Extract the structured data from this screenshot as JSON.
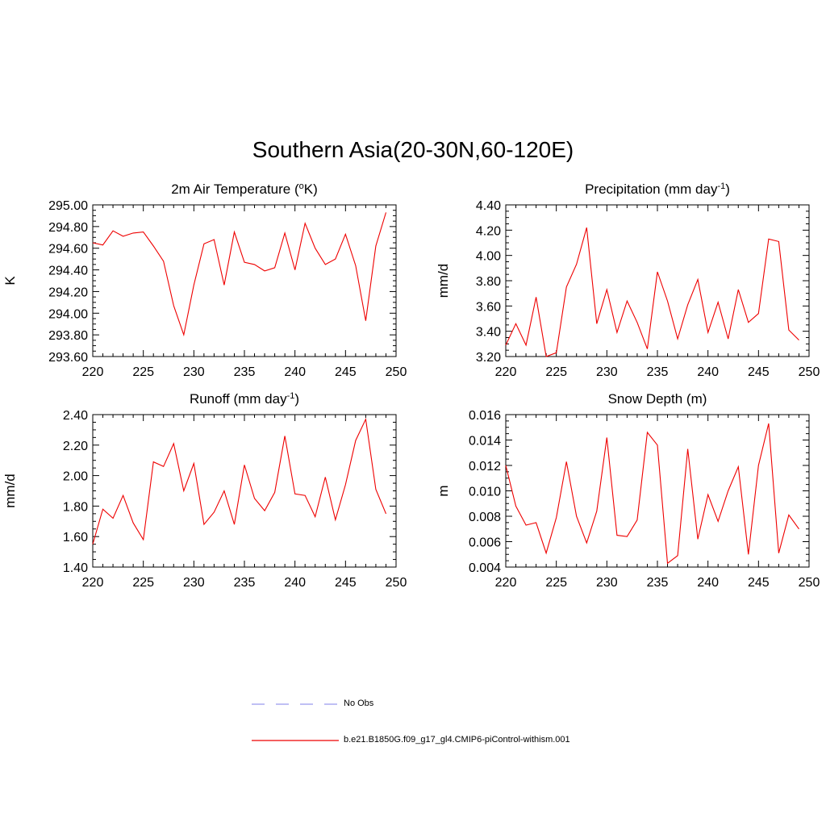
{
  "figure_title": "Southern Asia(20-30N,60-120E)",
  "legend": {
    "obs_label": "No Obs",
    "obs_color": "#9999ee",
    "model_label": "b.e21.B1850G.f09_g17_gl4.CMIP6-piControl-withism.001",
    "model_color": "#ee0000"
  },
  "chart_data": [
    {
      "type": "line",
      "title": "2m Air Temperature (",
      "title_sup": "o",
      "title_after": "K)",
      "ylabel": "K",
      "xlim": [
        220,
        250
      ],
      "ylim": [
        293.6,
        295.0
      ],
      "xticks": [
        220,
        225,
        230,
        235,
        240,
        245,
        250
      ],
      "yticks": [
        "293.60",
        "293.80",
        "294.00",
        "294.20",
        "294.40",
        "294.60",
        "294.80",
        "295.00"
      ],
      "x": [
        220,
        221,
        222,
        223,
        224,
        225,
        226,
        227,
        228,
        229,
        230,
        231,
        232,
        233,
        234,
        235,
        236,
        237,
        238,
        239,
        240,
        241,
        242,
        243,
        244,
        245,
        246,
        247,
        248,
        249
      ],
      "series": [
        {
          "values": [
            294.65,
            294.63,
            294.76,
            294.71,
            294.74,
            294.75,
            294.62,
            294.48,
            294.07,
            293.8,
            294.26,
            294.64,
            294.68,
            294.26,
            294.75,
            294.47,
            294.45,
            294.39,
            294.42,
            294.74,
            294.4,
            294.83,
            294.6,
            294.45,
            294.5,
            294.73,
            294.44,
            293.93,
            294.62,
            294.93
          ]
        }
      ]
    },
    {
      "type": "line",
      "title": "Precipitation (mm day",
      "title_sup": "-1",
      "title_after": ")",
      "ylabel": "mm/d",
      "xlim": [
        220,
        250
      ],
      "ylim": [
        3.2,
        4.4
      ],
      "xticks": [
        220,
        225,
        230,
        235,
        240,
        245,
        250
      ],
      "yticks": [
        "3.20",
        "3.40",
        "3.60",
        "3.80",
        "4.00",
        "4.20",
        "4.40"
      ],
      "x": [
        220,
        221,
        222,
        223,
        224,
        225,
        226,
        227,
        228,
        229,
        230,
        231,
        232,
        233,
        234,
        235,
        236,
        237,
        238,
        239,
        240,
        241,
        242,
        243,
        244,
        245,
        246,
        247,
        248,
        249
      ],
      "series": [
        {
          "values": [
            3.29,
            3.46,
            3.29,
            3.67,
            3.2,
            3.23,
            3.75,
            3.93,
            4.22,
            3.46,
            3.73,
            3.39,
            3.64,
            3.47,
            3.26,
            3.87,
            3.64,
            3.34,
            3.61,
            3.81,
            3.39,
            3.63,
            3.34,
            3.73,
            3.47,
            3.54,
            4.13,
            4.11,
            3.41,
            3.33
          ]
        }
      ]
    },
    {
      "type": "line",
      "title": "Runoff (mm day",
      "title_sup": "-1",
      "title_after": ")",
      "ylabel": "mm/d",
      "xlim": [
        220,
        250
      ],
      "ylim": [
        1.4,
        2.4
      ],
      "xticks": [
        220,
        225,
        230,
        235,
        240,
        245,
        250
      ],
      "yticks": [
        "1.40",
        "1.60",
        "1.80",
        "2.00",
        "2.20",
        "2.40"
      ],
      "x": [
        220,
        221,
        222,
        223,
        224,
        225,
        226,
        227,
        228,
        229,
        230,
        231,
        232,
        233,
        234,
        235,
        236,
        237,
        238,
        239,
        240,
        241,
        242,
        243,
        244,
        245,
        246,
        247,
        248,
        249
      ],
      "series": [
        {
          "values": [
            1.55,
            1.78,
            1.72,
            1.87,
            1.69,
            1.58,
            2.09,
            2.06,
            2.21,
            1.9,
            2.08,
            1.68,
            1.76,
            1.9,
            1.68,
            2.07,
            1.85,
            1.77,
            1.89,
            2.26,
            1.88,
            1.87,
            1.73,
            1.99,
            1.71,
            1.94,
            2.23,
            2.37,
            1.91,
            1.75
          ]
        }
      ]
    },
    {
      "type": "line",
      "title": "Snow Depth (m)",
      "title_sup": "",
      "title_after": "",
      "ylabel": "m",
      "xlim": [
        220,
        250
      ],
      "ylim": [
        0.004,
        0.016
      ],
      "xticks": [
        220,
        225,
        230,
        235,
        240,
        245,
        250
      ],
      "yticks": [
        "0.004",
        "0.006",
        "0.008",
        "0.010",
        "0.012",
        "0.014",
        "0.016"
      ],
      "x": [
        220,
        221,
        222,
        223,
        224,
        225,
        226,
        227,
        228,
        229,
        230,
        231,
        232,
        233,
        234,
        235,
        236,
        237,
        238,
        239,
        240,
        241,
        242,
        243,
        244,
        245,
        246,
        247,
        248,
        249
      ],
      "series": [
        {
          "values": [
            0.012,
            0.0088,
            0.0073,
            0.0075,
            0.0051,
            0.0079,
            0.0123,
            0.008,
            0.0059,
            0.0084,
            0.0142,
            0.0065,
            0.0064,
            0.0077,
            0.0146,
            0.0136,
            0.0043,
            0.0049,
            0.0133,
            0.0062,
            0.0097,
            0.0076,
            0.01,
            0.0119,
            0.005,
            0.012,
            0.0153,
            0.0051,
            0.0081,
            0.007
          ]
        }
      ]
    }
  ]
}
